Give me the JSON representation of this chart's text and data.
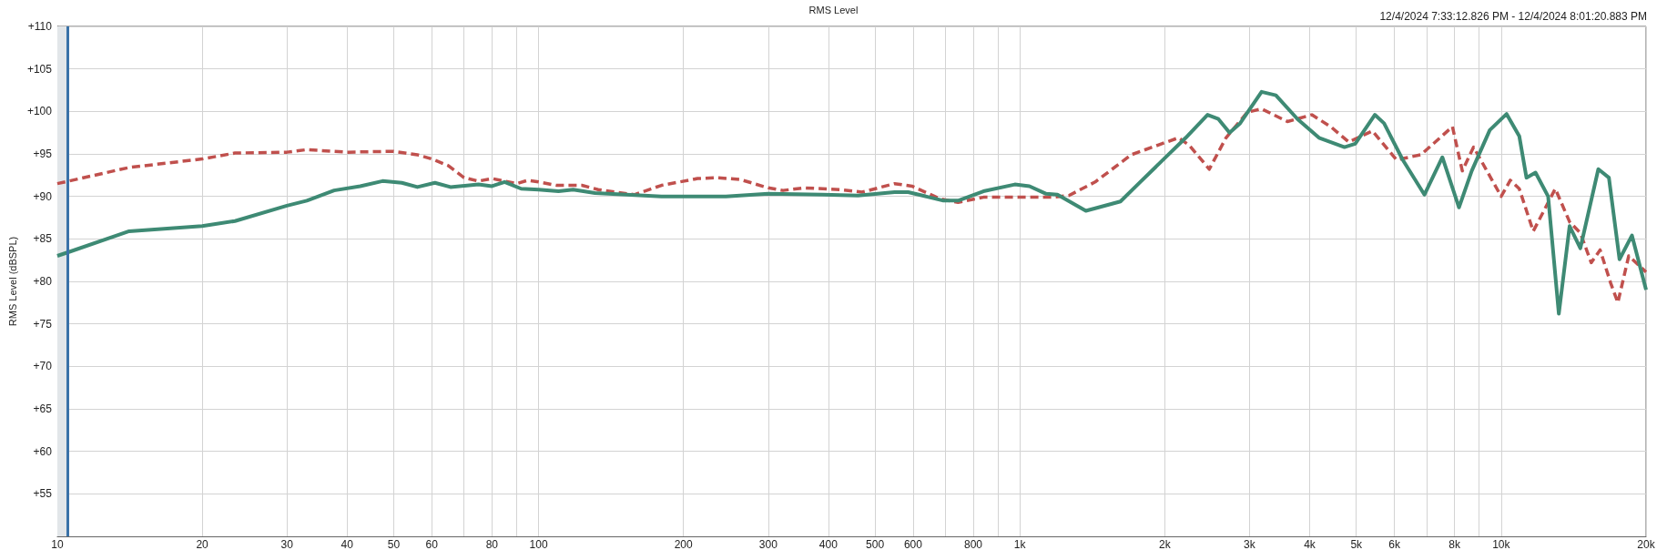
{
  "chart_data": {
    "type": "line",
    "title": "RMS Level",
    "ylabel": "RMS Level (dBSPL)",
    "annotations": [
      "12/4/2024 7:33:12.826 PM - 12/4/2024 8:01:20.883 PM"
    ],
    "log": "x",
    "grid": true,
    "marker": "none",
    "xlim": [
      10,
      20000
    ],
    "ylim": [
      50,
      110
    ],
    "xticks": [
      10,
      20,
      30,
      40,
      50,
      60,
      {
        "value": 70,
        "label": null
      },
      80,
      {
        "value": 90,
        "label": null
      },
      100,
      200,
      300,
      400,
      500,
      600,
      {
        "value": 700,
        "label": null
      },
      800,
      {
        "value": 900,
        "label": null
      },
      {
        "value": 1000,
        "label": "1k"
      },
      {
        "value": 2000,
        "label": "2k"
      },
      {
        "value": 3000,
        "label": "3k"
      },
      {
        "value": 4000,
        "label": "4k"
      },
      {
        "value": 5000,
        "label": "5k"
      },
      {
        "value": 6000,
        "label": "6k"
      },
      {
        "value": 7000,
        "label": null
      },
      {
        "value": 8000,
        "label": "8k"
      },
      {
        "value": 9000,
        "label": null
      },
      {
        "value": 10000,
        "label": "10k"
      },
      {
        "value": 20000,
        "label": "20k"
      }
    ],
    "yticks": [
      {
        "value": 55,
        "label": "+55"
      },
      {
        "value": 60,
        "label": "+60"
      },
      {
        "value": 65,
        "label": "+65"
      },
      {
        "value": 70,
        "label": "+70"
      },
      {
        "value": 75,
        "label": "+75"
      },
      {
        "value": 80,
        "label": "+80"
      },
      {
        "value": 85,
        "label": "+85"
      },
      {
        "value": 90,
        "label": "+90"
      },
      {
        "value": 95,
        "label": "+95"
      },
      {
        "value": 100,
        "label": "+100"
      },
      {
        "value": 105,
        "label": "+105"
      },
      {
        "value": 110,
        "label": "+110"
      }
    ],
    "ref_lines": [
      {
        "axis": "x",
        "value": 10.5,
        "color": "#3a72a8"
      }
    ],
    "bands": [
      {
        "axis": "x",
        "from": 10,
        "to": 10.5,
        "color": "#e2e6e9"
      }
    ],
    "series": [
      {
        "color": "#c0504d",
        "line_style": "dashed",
        "x": [
          10,
          14.1,
          20,
          23.4,
          30,
          33,
          40,
          50,
          56,
          60,
          65,
          70,
          75,
          80,
          90,
          95,
          100,
          109,
          123,
          133,
          158,
          180,
          214,
          233,
          262,
          300,
          322,
          356,
          423,
          470,
          549,
          597,
          683,
          744,
          840,
          998,
          1177,
          1264,
          1434,
          1704,
          2136,
          2250,
          2475,
          2681,
          2969,
          3178,
          3597,
          4043,
          4424,
          4822,
          5400,
          6061,
          6813,
          7920,
          8303,
          8763,
          10000,
          10447,
          10904,
          11659,
          12955,
          13873,
          14605,
          15385,
          16054,
          16886,
          17474,
          18410,
          20000
        ],
        "values": [
          91.5,
          93.4,
          94.4,
          95.1,
          95.2,
          95.5,
          95.2,
          95.3,
          94.9,
          94.4,
          93.6,
          92.2,
          91.8,
          92.1,
          91.5,
          91.9,
          91.7,
          91.3,
          91.3,
          90.8,
          90.2,
          91.3,
          92.1,
          92.2,
          92.0,
          91.0,
          90.7,
          91.0,
          90.8,
          90.5,
          91.5,
          91.2,
          89.7,
          89.3,
          89.9,
          89.9,
          89.9,
          90.1,
          91.7,
          94.9,
          96.9,
          96.0,
          93.2,
          96.9,
          99.9,
          100.3,
          98.8,
          99.6,
          98.2,
          96.4,
          97.7,
          94.3,
          94.9,
          98.2,
          93.0,
          95.8,
          90.0,
          91.9,
          90.9,
          85.9,
          90.9,
          87.0,
          85.7,
          82.2,
          83.7,
          79.8,
          77.5,
          83.0,
          81.1
        ]
      },
      {
        "color": "#3e8a74",
        "line_style": "solid",
        "x": [
          10,
          10.5,
          14.1,
          20,
          23.4,
          30,
          33,
          37.6,
          42.6,
          47.4,
          52,
          56,
          60.9,
          65.6,
          75,
          80,
          85,
          92,
          100,
          110,
          118,
          131,
          152,
          180,
          245,
          300,
          389,
          461,
          549,
          586,
          694,
          744,
          840,
          976,
          1047,
          1134,
          1197,
          1371,
          1434,
          1618,
          1765,
          2000,
          2211,
          2454,
          2585,
          2727,
          2868,
          3178,
          3403,
          3774,
          4183,
          4725,
          4975,
          5464,
          5710,
          6244,
          6926,
          7548,
          8172,
          8687,
          9469,
          10263,
          10904,
          11286,
          11785,
          12518,
          13176,
          13873,
          14605,
          15916,
          16744,
          17614,
          18693,
          20000
        ],
        "values": [
          83.0,
          83.4,
          85.9,
          86.5,
          87.1,
          88.9,
          89.5,
          90.7,
          91.2,
          91.8,
          91.6,
          91.1,
          91.6,
          91.1,
          91.4,
          91.2,
          91.7,
          90.9,
          90.8,
          90.6,
          90.8,
          90.4,
          90.2,
          90.0,
          90.0,
          90.3,
          90.2,
          90.1,
          90.5,
          90.5,
          89.5,
          89.5,
          90.6,
          91.4,
          91.2,
          90.3,
          90.2,
          88.3,
          88.6,
          89.4,
          91.5,
          94.5,
          96.9,
          99.6,
          99.1,
          97.5,
          98.6,
          102.3,
          101.9,
          99.1,
          96.9,
          95.8,
          96.2,
          99.6,
          98.6,
          94.3,
          90.2,
          94.6,
          88.7,
          93.0,
          97.8,
          99.7,
          97.1,
          92.2,
          92.8,
          90.0,
          76.2,
          86.5,
          83.9,
          93.2,
          92.2,
          82.6,
          85.4,
          79.0
        ]
      }
    ]
  }
}
